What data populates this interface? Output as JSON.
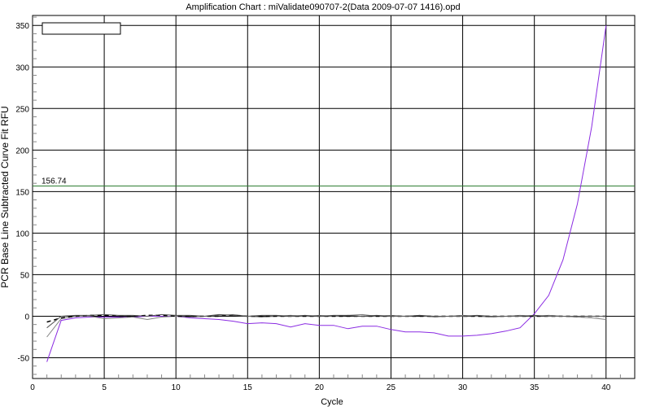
{
  "chart_data": {
    "type": "line",
    "title": "Amplification Chart : miValidate090707-2(Data 2009-07-07 1416).opd",
    "xlabel": "Cycle",
    "ylabel": "PCR Base Line Subtracted Curve Fit RFU",
    "xlim": [
      0,
      42
    ],
    "ylim": [
      -75,
      362
    ],
    "xticks": [
      0,
      5,
      10,
      15,
      20,
      25,
      30,
      35,
      40
    ],
    "yticks": [
      -50,
      0,
      50,
      100,
      150,
      200,
      250,
      300,
      350
    ],
    "grid": true,
    "legend": "top-left",
    "threshold": {
      "value": 156.74,
      "label": "156.74",
      "color": "#2e7d32"
    },
    "series": [
      {
        "color": "#8a2be2",
        "x": [
          1,
          2,
          3,
          4,
          5,
          6,
          7,
          8,
          9,
          10,
          11,
          12,
          13,
          14,
          15,
          16,
          17,
          18,
          19,
          20,
          21,
          22,
          23,
          24,
          25,
          26,
          27,
          28,
          29,
          30,
          31,
          32,
          33,
          34,
          35,
          36,
          37,
          38,
          39,
          40
        ],
        "y": [
          -55,
          -5,
          -2,
          -1,
          -1,
          -1,
          -1,
          0,
          0,
          0,
          -2,
          -3,
          -4,
          -6,
          -9,
          -8,
          -9,
          -13,
          -9,
          -11,
          -11,
          -15,
          -12,
          -12,
          -16,
          -19,
          -19,
          -20,
          -24,
          -24,
          -23,
          -21,
          -18,
          -14,
          3,
          25,
          68,
          135,
          228,
          350
        ]
      },
      {
        "color": "#808080",
        "x": [
          1,
          2,
          3,
          4,
          5,
          6,
          7,
          8,
          9,
          10,
          11,
          12,
          13,
          14,
          15,
          16,
          17,
          18,
          19,
          20,
          21,
          22,
          23,
          24,
          25,
          26,
          27,
          28,
          29,
          30,
          31,
          32,
          33,
          34,
          35,
          36,
          37,
          38,
          39,
          40
        ],
        "y": [
          -25,
          -3,
          0,
          0,
          -3,
          -2,
          -1,
          -4,
          -1,
          0,
          -1,
          0,
          1,
          2,
          0,
          -1,
          0,
          1,
          0,
          1,
          0,
          1,
          2,
          0,
          1,
          0,
          1,
          -1,
          0,
          1,
          0,
          -1,
          0,
          1,
          0,
          1,
          0,
          -1,
          -2,
          -4
        ]
      },
      {
        "color": "#000000",
        "dashed": true,
        "x": [
          1,
          2,
          3,
          4,
          5,
          6,
          7,
          8,
          9,
          10,
          11,
          12,
          13,
          14,
          15,
          16,
          17,
          18,
          19,
          20,
          21,
          22,
          23,
          24,
          25,
          26,
          27,
          28,
          29,
          30,
          31,
          32,
          33,
          34,
          35,
          36,
          37,
          38,
          39,
          40
        ],
        "y": [
          -7,
          -2,
          0,
          1,
          1,
          0,
          0,
          1,
          1,
          0,
          0,
          0,
          0,
          1,
          0,
          0,
          0,
          0,
          0,
          0,
          0,
          0,
          0,
          0,
          0,
          0,
          0,
          0,
          0,
          0,
          0,
          0,
          0,
          0,
          0,
          0,
          0,
          0,
          0,
          0
        ]
      },
      {
        "color": "#555555",
        "x": [
          1,
          2,
          3,
          4,
          5,
          6,
          7,
          8,
          9,
          10,
          11,
          12,
          13,
          14,
          15,
          16,
          17,
          18,
          19,
          20,
          21,
          22,
          23,
          24,
          25,
          26,
          27,
          28,
          29,
          30,
          31,
          32,
          33,
          34,
          35,
          36,
          37,
          38,
          39,
          40
        ],
        "y": [
          -14,
          0,
          1,
          1,
          2,
          1,
          1,
          0,
          2,
          1,
          1,
          0,
          2,
          1,
          0,
          1,
          1,
          0,
          1,
          0,
          1,
          1,
          0,
          1,
          0,
          0,
          1,
          0,
          0,
          0,
          1,
          0,
          0,
          0,
          1,
          0,
          0,
          0,
          0,
          0
        ]
      }
    ]
  }
}
